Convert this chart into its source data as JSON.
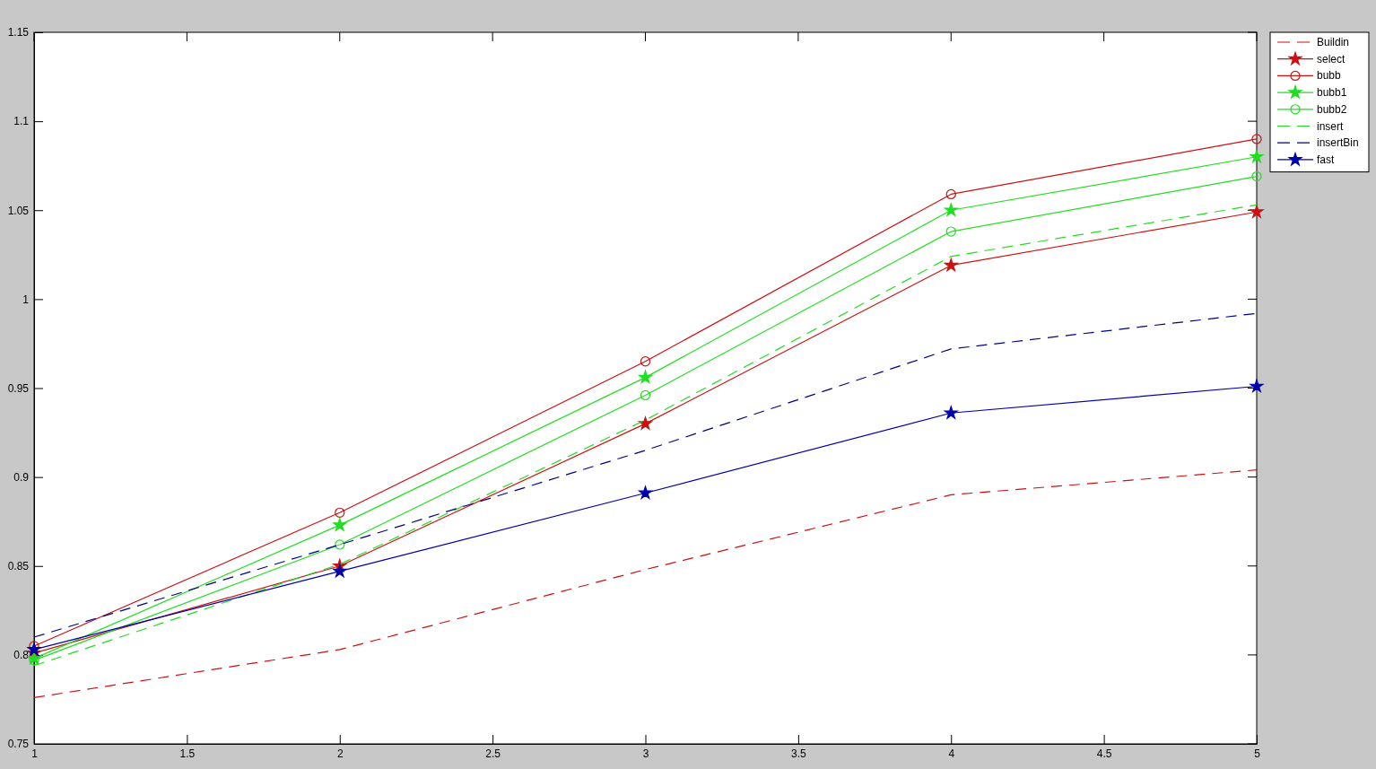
{
  "chart_data": {
    "type": "line",
    "x": [
      1,
      2,
      3,
      4,
      5
    ],
    "xlim": [
      1,
      5
    ],
    "xticks": [
      1,
      1.5,
      2,
      2.5,
      3,
      3.5,
      4,
      4.5,
      5
    ],
    "ylim": [
      0.75,
      1.15
    ],
    "yticks": [
      0.75,
      0.8,
      0.85,
      0.9,
      0.95,
      1,
      1.05,
      1.1,
      1.15
    ],
    "grid": false,
    "legend": "top right",
    "series": [
      {
        "name": "Buildin",
        "color": "#cc1111",
        "line_style": "dashed",
        "marker": "none",
        "values": [
          0.776,
          0.803,
          0.848,
          0.89,
          0.904
        ]
      },
      {
        "name": "select",
        "color": "#cc1111",
        "line_style": "solid",
        "marker": "star",
        "values": [
          0.801,
          0.85,
          0.93,
          1.019,
          1.049
        ]
      },
      {
        "name": "bubb",
        "color": "#cc1111",
        "line_style": "solid",
        "marker": "circle",
        "values": [
          0.805,
          0.88,
          0.965,
          1.059,
          1.09
        ]
      },
      {
        "name": "bubb1",
        "color": "#22dd22",
        "line_style": "solid",
        "marker": "star",
        "values": [
          0.798,
          0.873,
          0.956,
          1.05,
          1.08
        ]
      },
      {
        "name": "bubb2",
        "color": "#22dd22",
        "line_style": "solid",
        "marker": "circle",
        "values": [
          0.797,
          0.862,
          0.946,
          1.038,
          1.069
        ]
      },
      {
        "name": "insert",
        "color": "#22dd22",
        "line_style": "dashed",
        "marker": "none",
        "values": [
          0.794,
          0.851,
          0.932,
          1.024,
          1.053
        ]
      },
      {
        "name": "insertBin",
        "color": "#000088",
        "line_style": "dashed",
        "marker": "none",
        "values": [
          0.81,
          0.862,
          0.915,
          0.972,
          0.992
        ]
      },
      {
        "name": "fast",
        "color": "#0000aa",
        "line_style": "solid",
        "marker": "star",
        "values": [
          0.803,
          0.847,
          0.891,
          0.936,
          0.951
        ]
      }
    ]
  }
}
